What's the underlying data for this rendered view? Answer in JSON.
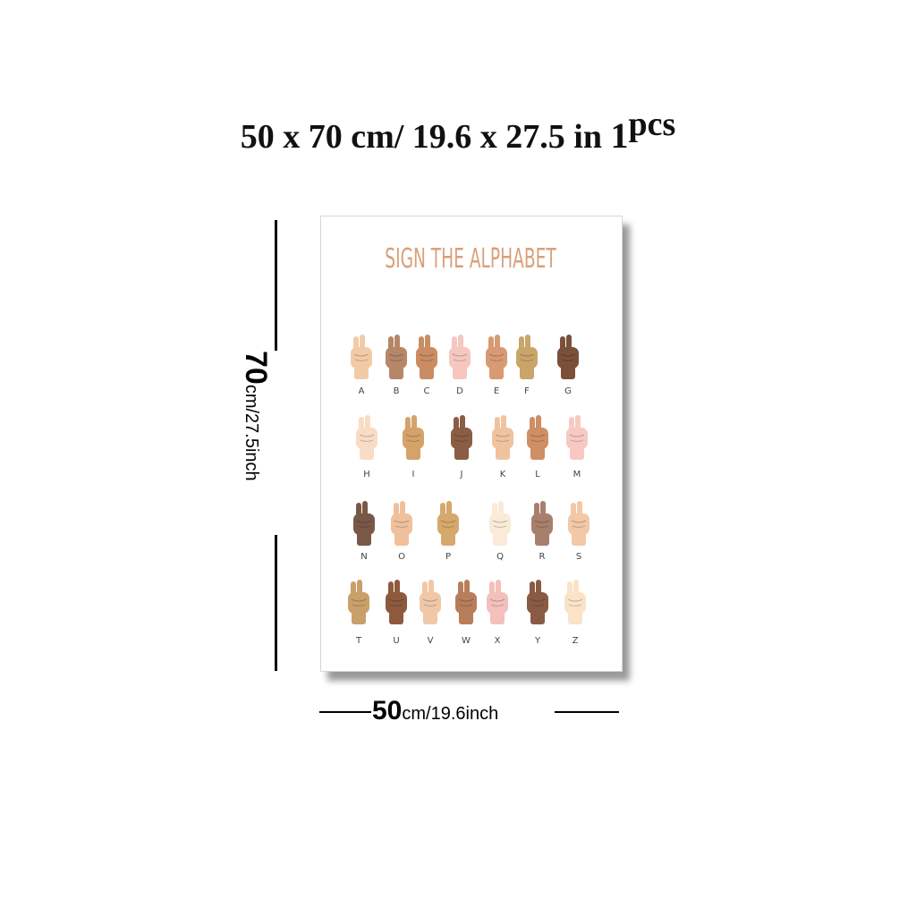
{
  "headline": {
    "part1": "50 x 70 cm/",
    "part2": " 19.6 x 27.5 in ",
    "part3": "1",
    "part4": "pcs"
  },
  "poster": {
    "title": "SIGN THE ALPHABET",
    "letters": [
      "A",
      "B",
      "C",
      "D",
      "E",
      "F",
      "G",
      "H",
      "I",
      "J",
      "K",
      "L",
      "M",
      "N",
      "O",
      "P",
      "Q",
      "R",
      "S",
      "T",
      "U",
      "V",
      "W",
      "X",
      "Y",
      "Z"
    ],
    "skin_tones": [
      "#f2cba6",
      "#b58768",
      "#c98c63",
      "#f6c6c0",
      "#d79a72",
      "#c9a56a",
      "#7a5038",
      "#f8ddc4",
      "#d4a36b",
      "#8a5e44",
      "#f0c3a0",
      "#cf8e63",
      "#f8c9c2",
      "#7a5848",
      "#f0c09c",
      "#d6a86c",
      "#faead8",
      "#a87f6c",
      "#f2c8a6",
      "#c9a06a",
      "#8e5a3e",
      "#f0c8a8",
      "#b87d5b",
      "#f3c0bb",
      "#8a5b44",
      "#fae3c8"
    ]
  },
  "dimensions": {
    "height_big": "70",
    "height_small": "cm/27.5inch",
    "width_big": "50",
    "width_small": "cm/19.6inch"
  }
}
